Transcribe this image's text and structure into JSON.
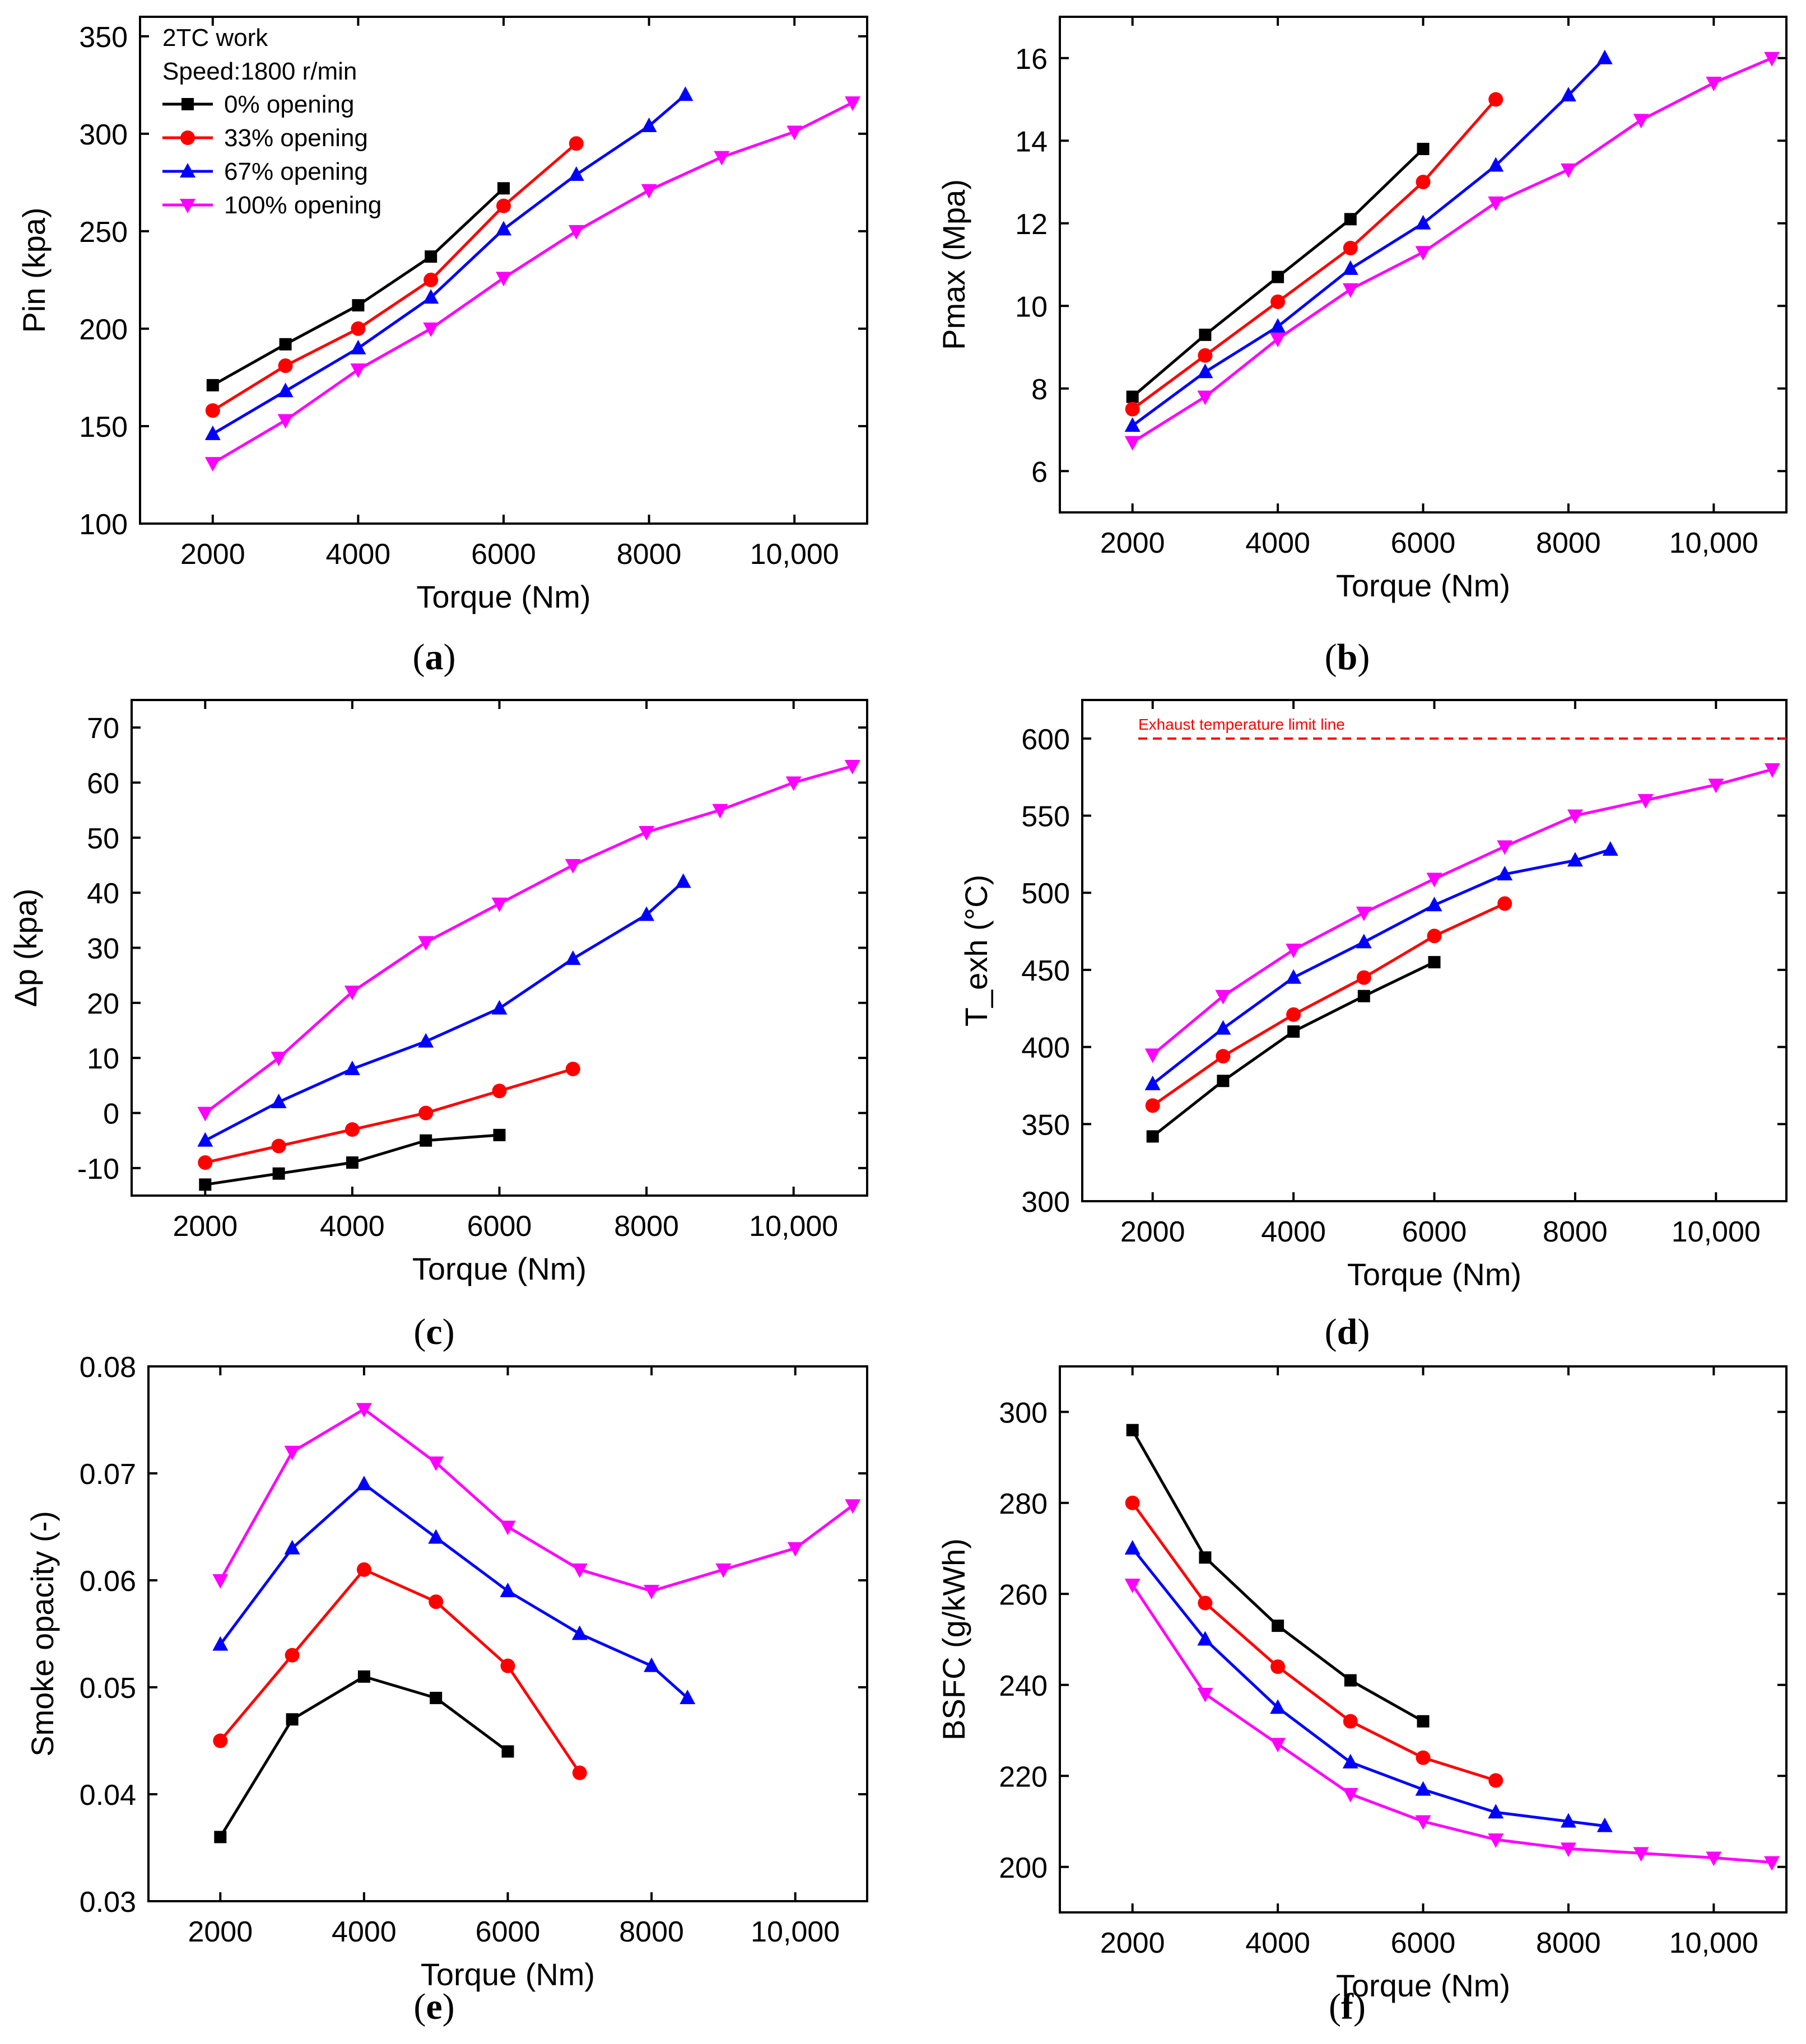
{
  "figure": {
    "legend": {
      "lines": [
        "2TC work",
        "Speed:1800 r/min"
      ],
      "series_names": [
        "0% opening",
        "33% opening",
        "67% opening",
        "100% opening"
      ]
    },
    "series_styles": [
      {
        "name": "0% opening",
        "color": "#000000",
        "marker": "square"
      },
      {
        "name": "33% opening",
        "color": "#ff0000",
        "marker": "circle"
      },
      {
        "name": "67% opening",
        "color": "#0000ff",
        "marker": "triangle-up"
      },
      {
        "name": "100% opening",
        "color": "#ff00ff",
        "marker": "triangle-down"
      }
    ]
  },
  "chart_data": [
    {
      "id": "a",
      "panel_label": "a",
      "type": "line",
      "xlabel": "Torque (Nm)",
      "ylabel": "Pin (kpa)",
      "xlim": [
        1000,
        11000
      ],
      "ylim": [
        100,
        360
      ],
      "xticks": [
        2000,
        4000,
        6000,
        8000,
        10000
      ],
      "xtick_labels": [
        "2000",
        "4000",
        "6000",
        "8000",
        "10,000"
      ],
      "yticks": [
        100,
        150,
        200,
        250,
        300,
        350
      ],
      "ytick_labels": [
        "100",
        "150",
        "200",
        "250",
        "300",
        "350"
      ],
      "series": [
        {
          "name": "0% opening",
          "x": [
            2000,
            3000,
            4000,
            5000,
            6000
          ],
          "y": [
            171,
            192,
            212,
            237,
            272
          ]
        },
        {
          "name": "33% opening",
          "x": [
            2000,
            3000,
            4000,
            5000,
            6000,
            7000
          ],
          "y": [
            158,
            181,
            200,
            225,
            263,
            295
          ]
        },
        {
          "name": "67% opening",
          "x": [
            2000,
            3000,
            4000,
            5000,
            6000,
            7000,
            8000,
            8500
          ],
          "y": [
            146,
            168,
            190,
            216,
            251,
            279,
            304,
            320
          ]
        },
        {
          "name": "100% opening",
          "x": [
            2000,
            3000,
            4000,
            5000,
            6000,
            7000,
            8000,
            9000,
            10000,
            10800
          ],
          "y": [
            131,
            153,
            179,
            200,
            226,
            250,
            271,
            288,
            301,
            316
          ]
        }
      ]
    },
    {
      "id": "b",
      "panel_label": "b",
      "type": "line",
      "xlabel": "Torque (Nm)",
      "ylabel": "Pmax (Mpa)",
      "xlim": [
        1000,
        11000
      ],
      "ylim": [
        5,
        17
      ],
      "xticks": [
        2000,
        4000,
        6000,
        8000,
        10000
      ],
      "xtick_labels": [
        "2000",
        "4000",
        "6000",
        "8000",
        "10,000"
      ],
      "yticks": [
        6,
        8,
        10,
        12,
        14,
        16
      ],
      "ytick_labels": [
        "6",
        "8",
        "10",
        "12",
        "14",
        "16"
      ],
      "series": [
        {
          "name": "0% opening",
          "x": [
            2000,
            3000,
            4000,
            5000,
            6000
          ],
          "y": [
            7.8,
            9.3,
            10.7,
            12.1,
            13.8
          ]
        },
        {
          "name": "33% opening",
          "x": [
            2000,
            3000,
            4000,
            5000,
            6000,
            7000
          ],
          "y": [
            7.5,
            8.8,
            10.1,
            11.4,
            13.0,
            15.0
          ]
        },
        {
          "name": "67% opening",
          "x": [
            2000,
            3000,
            4000,
            5000,
            6000,
            7000,
            8000,
            8500
          ],
          "y": [
            7.1,
            8.4,
            9.5,
            10.9,
            12.0,
            13.4,
            15.1,
            16.0
          ]
        },
        {
          "name": "100% opening",
          "x": [
            2000,
            3000,
            4000,
            5000,
            6000,
            7000,
            8000,
            9000,
            10000,
            10800
          ],
          "y": [
            6.7,
            7.8,
            9.2,
            10.4,
            11.3,
            12.5,
            13.3,
            14.5,
            15.4,
            16.0
          ]
        }
      ]
    },
    {
      "id": "c",
      "panel_label": "c",
      "type": "line",
      "xlabel": "Torque (Nm)",
      "ylabel": "Δp (kpa)",
      "xlim": [
        1000,
        11000
      ],
      "ylim": [
        -15,
        75
      ],
      "xticks": [
        2000,
        4000,
        6000,
        8000,
        10000
      ],
      "xtick_labels": [
        "2000",
        "4000",
        "6000",
        "8000",
        "10,000"
      ],
      "yticks": [
        -10,
        0,
        10,
        20,
        30,
        40,
        50,
        60,
        70
      ],
      "ytick_labels": [
        "-10",
        "0",
        "10",
        "20",
        "30",
        "40",
        "50",
        "60",
        "70"
      ],
      "series": [
        {
          "name": "0% opening",
          "x": [
            2000,
            3000,
            4000,
            5000,
            6000
          ],
          "y": [
            -13,
            -11,
            -9,
            -5,
            -4
          ]
        },
        {
          "name": "33% opening",
          "x": [
            2000,
            3000,
            4000,
            5000,
            6000,
            7000
          ],
          "y": [
            -9,
            -6,
            -3,
            0,
            4,
            8
          ]
        },
        {
          "name": "67% opening",
          "x": [
            2000,
            3000,
            4000,
            5000,
            6000,
            7000,
            8000,
            8500
          ],
          "y": [
            -5,
            2,
            8,
            13,
            19,
            28,
            36,
            42
          ]
        },
        {
          "name": "100% opening",
          "x": [
            2000,
            3000,
            4000,
            5000,
            6000,
            7000,
            8000,
            9000,
            10000,
            10800
          ],
          "y": [
            0,
            10,
            22,
            31,
            38,
            45,
            51,
            55,
            60,
            63
          ]
        }
      ]
    },
    {
      "id": "d",
      "panel_label": "d",
      "type": "line",
      "xlabel": "Torque (Nm)",
      "ylabel": "T_exh (°C)",
      "xlim": [
        1000,
        11000
      ],
      "ylim": [
        300,
        625
      ],
      "xticks": [
        2000,
        4000,
        6000,
        8000,
        10000
      ],
      "xtick_labels": [
        "2000",
        "4000",
        "6000",
        "8000",
        "10,000"
      ],
      "yticks": [
        300,
        350,
        400,
        450,
        500,
        550,
        600
      ],
      "ytick_labels": [
        "300",
        "350",
        "400",
        "450",
        "500",
        "550",
        "600"
      ],
      "reference_line": {
        "y": 600,
        "label": "Exhaust temperature limit line",
        "color": "#ff0000"
      },
      "series": [
        {
          "name": "0% opening",
          "x": [
            2000,
            3000,
            4000,
            5000,
            6000
          ],
          "y": [
            342,
            378,
            410,
            433,
            455
          ]
        },
        {
          "name": "33% opening",
          "x": [
            2000,
            3000,
            4000,
            5000,
            6000,
            7000
          ],
          "y": [
            362,
            394,
            421,
            445,
            472,
            493
          ]
        },
        {
          "name": "67% opening",
          "x": [
            2000,
            3000,
            4000,
            5000,
            6000,
            7000,
            8000,
            8500
          ],
          "y": [
            376,
            412,
            445,
            468,
            492,
            512,
            521,
            528
          ]
        },
        {
          "name": "100% opening",
          "x": [
            2000,
            3000,
            4000,
            5000,
            6000,
            7000,
            8000,
            9000,
            10000,
            10800
          ],
          "y": [
            395,
            433,
            463,
            487,
            509,
            530,
            550,
            560,
            570,
            580
          ]
        }
      ]
    },
    {
      "id": "e",
      "panel_label": "e",
      "type": "line",
      "xlabel": "Torque (Nm)",
      "ylabel": "Smoke opacity (-)",
      "xlim": [
        1000,
        11000
      ],
      "ylim": [
        0.03,
        0.08
      ],
      "xticks": [
        2000,
        4000,
        6000,
        8000,
        10000
      ],
      "xtick_labels": [
        "2000",
        "4000",
        "6000",
        "8000",
        "10,000"
      ],
      "yticks": [
        0.03,
        0.04,
        0.05,
        0.06,
        0.07,
        0.08
      ],
      "ytick_labels": [
        "0.03",
        "0.04",
        "0.05",
        "0.06",
        "0.07",
        "0.08"
      ],
      "series": [
        {
          "name": "0% opening",
          "x": [
            2000,
            3000,
            4000,
            5000,
            6000
          ],
          "y": [
            0.036,
            0.047,
            0.051,
            0.049,
            0.044
          ]
        },
        {
          "name": "33% opening",
          "x": [
            2000,
            3000,
            4000,
            5000,
            6000,
            7000
          ],
          "y": [
            0.045,
            0.053,
            0.061,
            0.058,
            0.052,
            0.042
          ]
        },
        {
          "name": "67% opening",
          "x": [
            2000,
            3000,
            4000,
            5000,
            6000,
            7000,
            8000,
            8500
          ],
          "y": [
            0.054,
            0.063,
            0.069,
            0.064,
            0.059,
            0.055,
            0.052,
            0.049
          ]
        },
        {
          "name": "100% opening",
          "x": [
            2000,
            3000,
            4000,
            5000,
            6000,
            7000,
            8000,
            9000,
            10000,
            10800
          ],
          "y": [
            0.06,
            0.072,
            0.076,
            0.071,
            0.065,
            0.061,
            0.059,
            0.061,
            0.063,
            0.067
          ]
        }
      ]
    },
    {
      "id": "f",
      "panel_label": "f",
      "type": "line",
      "xlabel": "Torque (Nm)",
      "ylabel": "BSFC (g/kWh)",
      "xlim": [
        1000,
        11000
      ],
      "ylim": [
        190,
        310
      ],
      "xticks": [
        2000,
        4000,
        6000,
        8000,
        10000
      ],
      "xtick_labels": [
        "2000",
        "4000",
        "6000",
        "8000",
        "10,000"
      ],
      "yticks": [
        200,
        220,
        240,
        260,
        280,
        300
      ],
      "ytick_labels": [
        "200",
        "220",
        "240",
        "260",
        "280",
        "300"
      ],
      "series": [
        {
          "name": "0% opening",
          "x": [
            2000,
            3000,
            4000,
            5000,
            6000
          ],
          "y": [
            296,
            268,
            253,
            241,
            232
          ]
        },
        {
          "name": "33% opening",
          "x": [
            2000,
            3000,
            4000,
            5000,
            6000,
            7000
          ],
          "y": [
            280,
            258,
            244,
            232,
            224,
            219
          ]
        },
        {
          "name": "67% opening",
          "x": [
            2000,
            3000,
            4000,
            5000,
            6000,
            7000,
            8000,
            8500
          ],
          "y": [
            270,
            250,
            235,
            223,
            217,
            212,
            210,
            209
          ]
        },
        {
          "name": "100% opening",
          "x": [
            2000,
            3000,
            4000,
            5000,
            6000,
            7000,
            8000,
            9000,
            10000,
            10800
          ],
          "y": [
            262,
            238,
            227,
            216,
            210,
            206,
            204,
            203,
            202,
            201
          ]
        }
      ]
    }
  ]
}
